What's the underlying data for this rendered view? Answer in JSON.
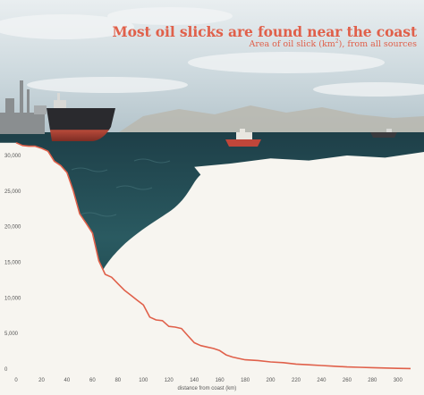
{
  "header": {
    "title": "Most oil slicks are found near the coast",
    "subtitle_prefix": "Area of oil slick (km",
    "subtitle_sup": "2",
    "subtitle_suffix": "), from all sources"
  },
  "colors": {
    "accent": "#e0604a",
    "background": "#f7f5f0",
    "sea": "#1f4f57",
    "sky": "#c9d6dc"
  },
  "icons": {
    "tanker": "oil-tanker-illustration",
    "boat": "small-boat-illustration",
    "refinery": "coastal-refinery-illustration"
  },
  "chart_data": {
    "type": "area",
    "title": "Most oil slicks are found near the coast",
    "subtitle": "Area of oil slick (km²), from all sources",
    "xlabel": "distance from coast (km)",
    "ylabel": "",
    "xlim": [
      0,
      310
    ],
    "ylim": [
      0,
      30000
    ],
    "x_ticks": [
      0,
      20,
      40,
      60,
      80,
      100,
      120,
      140,
      160,
      180,
      200,
      220,
      240,
      260,
      280,
      300
    ],
    "y_ticks": [
      {
        "value": 0,
        "label": "0"
      },
      {
        "value": 5000,
        "label": "5,000"
      },
      {
        "value": 10000,
        "label": "10,000"
      },
      {
        "value": 15000,
        "label": "15,000"
      },
      {
        "value": 20000,
        "label": "20,000"
      },
      {
        "value": 25000,
        "label": "25,000"
      },
      {
        "value": 30000,
        "label": "30,000"
      }
    ],
    "grid": false,
    "series": [
      {
        "x": [
          0,
          5,
          10,
          15,
          20,
          25,
          30,
          35,
          40,
          45,
          50,
          55,
          60,
          65,
          70,
          75,
          80,
          85,
          90,
          95,
          100,
          105,
          110,
          115,
          120,
          125,
          130,
          135,
          140,
          145,
          150,
          155,
          160,
          165,
          170,
          175,
          180,
          190,
          200,
          210,
          220,
          230,
          240,
          250,
          260,
          270,
          280,
          290,
          300,
          310
        ],
        "y": [
          31800,
          31400,
          31300,
          31300,
          31000,
          30600,
          29200,
          28600,
          27600,
          25000,
          21800,
          20500,
          19100,
          15200,
          13300,
          12900,
          12000,
          11100,
          10400,
          9700,
          9000,
          7300,
          6900,
          6800,
          6000,
          5900,
          5700,
          4700,
          3700,
          3300,
          3100,
          2900,
          2600,
          2000,
          1700,
          1500,
          1300,
          1200,
          1000,
          900,
          700,
          600,
          500,
          400,
          300,
          250,
          200,
          150,
          100,
          80
        ]
      }
    ]
  }
}
